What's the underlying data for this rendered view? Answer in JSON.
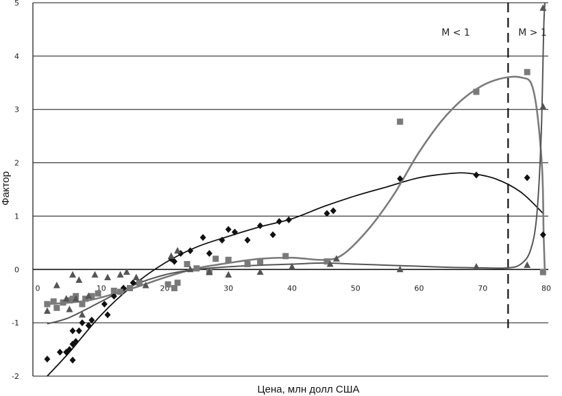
{
  "chart_data": {
    "type": "scatter",
    "title": "",
    "xlabel": "Цена, млн  долл США",
    "ylabel": "Фактор",
    "xlim": [
      0,
      80
    ],
    "ylim": [
      -2,
      5
    ],
    "x_ticks": [
      "0",
      "10",
      "20",
      "30",
      "40",
      "50",
      "60",
      "70",
      "80"
    ],
    "y_ticks": [
      "-2",
      "-1",
      "0",
      "1",
      "2",
      "3",
      "4",
      "5"
    ],
    "grid": "horizontal",
    "threshold": {
      "x": 74,
      "style": "dashed",
      "label_left": "M < 1",
      "label_right": "M > 1"
    },
    "series": [
      {
        "marker": "diamond",
        "color": "#111111",
        "points": [
          [
            1.5,
            -1.68
          ],
          [
            3.5,
            -1.55
          ],
          [
            4.5,
            -1.55
          ],
          [
            5,
            -1.5
          ],
          [
            5.5,
            -1.4
          ],
          [
            6,
            -1.35
          ],
          [
            5.5,
            -1.7
          ],
          [
            5.5,
            -1.15
          ],
          [
            6.5,
            -1.15
          ],
          [
            7,
            -1.0
          ],
          [
            8,
            -1.05
          ],
          [
            8.5,
            -0.95
          ],
          [
            10.5,
            -0.65
          ],
          [
            11,
            -0.85
          ],
          [
            12,
            -0.5
          ],
          [
            13.5,
            -0.35
          ],
          [
            15,
            -0.25
          ],
          [
            21,
            0.2
          ],
          [
            21.5,
            0.15
          ],
          [
            22.5,
            0.3
          ],
          [
            24,
            0.35
          ],
          [
            26,
            0.6
          ],
          [
            27,
            0.3
          ],
          [
            29,
            0.55
          ],
          [
            30,
            0.75
          ],
          [
            31,
            0.7
          ],
          [
            33,
            0.55
          ],
          [
            35,
            0.82
          ],
          [
            37,
            0.65
          ],
          [
            38,
            0.9
          ],
          [
            39.5,
            0.93
          ],
          [
            45.5,
            1.05
          ],
          [
            46.5,
            1.1
          ],
          [
            57,
            1.7
          ],
          [
            69,
            1.77
          ],
          [
            77,
            1.72
          ],
          [
            79.5,
            0.65
          ]
        ],
        "trend": [
          [
            1.5,
            -2.0
          ],
          [
            5,
            -1.55
          ],
          [
            10,
            -0.85
          ],
          [
            15,
            -0.3
          ],
          [
            20,
            0.12
          ],
          [
            25,
            0.42
          ],
          [
            30,
            0.62
          ],
          [
            35,
            0.8
          ],
          [
            40,
            0.95
          ],
          [
            45,
            1.18
          ],
          [
            50,
            1.38
          ],
          [
            55,
            1.55
          ],
          [
            60,
            1.72
          ],
          [
            65,
            1.8
          ],
          [
            68,
            1.8
          ],
          [
            72,
            1.7
          ],
          [
            76,
            1.45
          ],
          [
            79.5,
            1.05
          ]
        ]
      },
      {
        "marker": "square",
        "color": "#7a7a7a",
        "points": [
          [
            1.5,
            -0.65
          ],
          [
            2.5,
            -0.6
          ],
          [
            3,
            -0.72
          ],
          [
            4,
            -0.62
          ],
          [
            5,
            -0.58
          ],
          [
            5.5,
            -0.55
          ],
          [
            6,
            -0.5
          ],
          [
            7,
            -0.65
          ],
          [
            7.5,
            -0.55
          ],
          [
            8.5,
            -0.5
          ],
          [
            9.5,
            -0.45
          ],
          [
            12,
            -0.4
          ],
          [
            13,
            -0.42
          ],
          [
            14.5,
            -0.35
          ],
          [
            16,
            -0.25
          ],
          [
            20.5,
            -0.28
          ],
          [
            21.5,
            -0.35
          ],
          [
            22,
            -0.25
          ],
          [
            23.5,
            0.1
          ],
          [
            25,
            0.02
          ],
          [
            27,
            -0.05
          ],
          [
            28,
            0.2
          ],
          [
            30,
            0.18
          ],
          [
            33,
            0.1
          ],
          [
            35,
            0.15
          ],
          [
            39,
            0.25
          ],
          [
            45.5,
            0.15
          ],
          [
            57,
            2.77
          ],
          [
            69,
            3.33
          ],
          [
            77,
            3.7
          ],
          [
            79.5,
            -0.05
          ]
        ],
        "trend": [
          [
            1.5,
            -0.65
          ],
          [
            8,
            -0.58
          ],
          [
            15,
            -0.35
          ],
          [
            20,
            -0.15
          ],
          [
            25,
            0.02
          ],
          [
            30,
            0.12
          ],
          [
            35,
            0.2
          ],
          [
            40,
            0.22
          ],
          [
            45,
            0.18
          ],
          [
            48,
            0.28
          ],
          [
            52,
            0.75
          ],
          [
            56,
            1.4
          ],
          [
            60,
            2.2
          ],
          [
            64,
            2.85
          ],
          [
            68,
            3.3
          ],
          [
            72,
            3.55
          ],
          [
            76,
            3.6
          ],
          [
            78,
            3.35
          ],
          [
            79.3,
            2.0
          ],
          [
            79.6,
            0.6
          ],
          [
            79.8,
            -0.1
          ]
        ]
      },
      {
        "marker": "triangle",
        "color": "#555555",
        "points": [
          [
            1.5,
            -0.78
          ],
          [
            3,
            -0.3
          ],
          [
            4.5,
            -0.55
          ],
          [
            5,
            -0.75
          ],
          [
            5.5,
            -0.1
          ],
          [
            6,
            -0.55
          ],
          [
            6.5,
            -0.2
          ],
          [
            7,
            -0.85
          ],
          [
            8,
            -0.5
          ],
          [
            9,
            -0.1
          ],
          [
            11,
            -0.15
          ],
          [
            13,
            -0.1
          ],
          [
            14,
            -0.05
          ],
          [
            15.5,
            -0.15
          ],
          [
            17,
            -0.3
          ],
          [
            21,
            0.25
          ],
          [
            22,
            0.35
          ],
          [
            24,
            0.0
          ],
          [
            27,
            -0.05
          ],
          [
            30,
            -0.1
          ],
          [
            35,
            -0.05
          ],
          [
            40,
            0.05
          ],
          [
            46,
            0.1
          ],
          [
            47,
            0.2
          ],
          [
            57,
            0.0
          ],
          [
            69,
            0.05
          ],
          [
            77,
            0.08
          ],
          [
            79.5,
            3.05
          ],
          [
            79.5,
            4.9
          ]
        ],
        "trend": [
          [
            1.5,
            -1.02
          ],
          [
            5,
            -0.9
          ],
          [
            10,
            -0.6
          ],
          [
            15,
            -0.3
          ],
          [
            20,
            -0.1
          ],
          [
            25,
            0.0
          ],
          [
            30,
            0.05
          ],
          [
            35,
            0.08
          ],
          [
            40,
            0.1
          ],
          [
            45,
            0.12
          ],
          [
            50,
            0.1
          ],
          [
            55,
            0.08
          ],
          [
            60,
            0.06
          ],
          [
            65,
            0.04
          ],
          [
            70,
            0.03
          ],
          [
            74,
            0.03
          ],
          [
            76,
            0.1
          ],
          [
            77.5,
            0.35
          ],
          [
            78.5,
            1.0
          ],
          [
            79.2,
            2.5
          ],
          [
            79.6,
            4.5
          ],
          [
            79.8,
            5.0
          ]
        ]
      }
    ]
  }
}
